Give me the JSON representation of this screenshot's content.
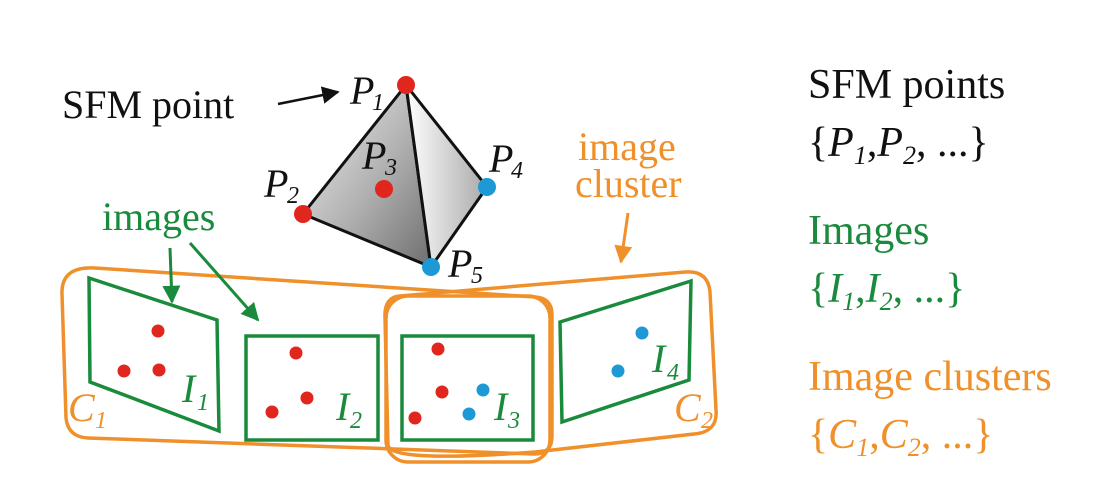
{
  "colors": {
    "red": "#e0261d",
    "blue": "#1d9ad6",
    "green": "#1a8a3c",
    "orange": "#f0902a",
    "black": "#111111"
  },
  "labels": {
    "sfm_point": "SFM point",
    "images": "images",
    "image_cluster_line1": "image",
    "image_cluster_line2": "cluster",
    "P": "P",
    "I": "I",
    "C": "C"
  },
  "subscripts": {
    "p1": "1",
    "p2": "2",
    "p3": "3",
    "p4": "4",
    "p5": "5",
    "i1": "1",
    "i2": "2",
    "i3": "3",
    "i4": "4",
    "c1": "1",
    "c2": "2"
  },
  "legend": {
    "sfm": {
      "title": "SFM points",
      "open": "{",
      "a": "P",
      "a_sub": "1",
      "sep": ",",
      "b": "P",
      "b_sub": "2",
      "rest": ", ...}"
    },
    "images": {
      "title": "Images",
      "open": "{",
      "a": "I",
      "a_sub": "1",
      "sep": ",",
      "b": "I",
      "b_sub": "2",
      "rest": ", ...}"
    },
    "clusters": {
      "title": "Image clusters",
      "open": "{",
      "a": "C",
      "a_sub": "1",
      "sep": ",",
      "b": "C",
      "b_sub": "2",
      "rest": ", ...}"
    }
  }
}
